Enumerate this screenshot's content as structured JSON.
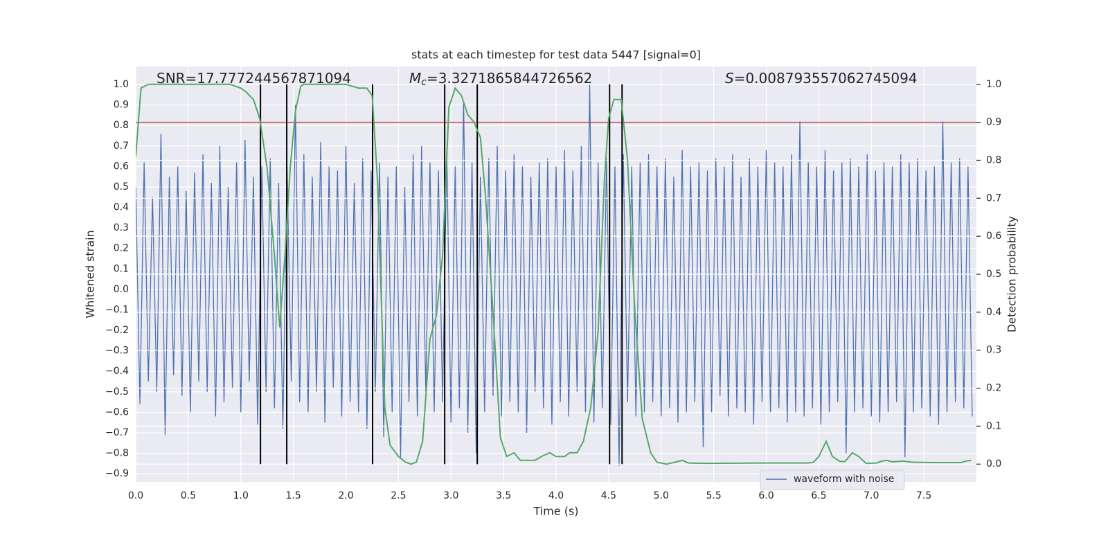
{
  "chart_data": {
    "type": "line",
    "title": "stats at each timestep for test data 5447 [signal=0]",
    "xlabel": "Time (s)",
    "ylabel": "Whitened strain",
    "y2label": "Detection probability",
    "annotations": [
      {
        "text": "SNR=17.777244567871094"
      },
      {
        "symbol": "M",
        "subscript": "c",
        "text": "=3.3271865844726562"
      },
      {
        "symbol": "S",
        "text": "=0.008793557062745094"
      }
    ],
    "xlim": [
      0,
      8.0
    ],
    "ylim": [
      -0.94,
      1.088
    ],
    "y2lim": [
      -0.047,
      1.047
    ],
    "xticks": [
      {
        "value": 0,
        "label": "0.0"
      },
      0.5,
      {
        "value": 1,
        "label": "1.0"
      },
      1.5,
      {
        "value": 2,
        "label": "2.0"
      },
      2.5,
      {
        "value": 3,
        "label": "3.0"
      },
      3.5,
      {
        "value": 4,
        "label": "4.0"
      },
      4.5,
      {
        "value": 5,
        "label": "5.0"
      },
      5.5,
      {
        "value": 6,
        "label": "6.0"
      },
      6.5,
      {
        "value": 7,
        "label": "7.0"
      },
      7.5
    ],
    "yticks": [
      {
        "value": -0.9,
        "label": "−0.9"
      },
      {
        "value": -0.8,
        "label": "−0.8"
      },
      {
        "value": -0.7,
        "label": "−0.7"
      },
      {
        "value": -0.6,
        "label": "−0.6"
      },
      {
        "value": -0.5,
        "label": "−0.5"
      },
      {
        "value": -0.4,
        "label": "−0.4"
      },
      {
        "value": -0.3,
        "label": "−0.3"
      },
      {
        "value": -0.2,
        "label": "−0.2"
      },
      {
        "value": -0.1,
        "label": "−0.1"
      },
      {
        "value": 0,
        "label": "0.0"
      },
      0.1,
      0.2,
      0.3,
      0.4,
      0.5,
      0.6,
      0.7,
      0.8,
      0.9,
      {
        "value": 1,
        "label": "1.0"
      }
    ],
    "y2ticks": [
      {
        "value": 0,
        "label": "0.0"
      },
      0.1,
      0.2,
      0.3,
      0.4,
      0.5,
      0.6,
      0.7,
      0.8,
      0.9,
      {
        "value": 1,
        "label": "1.0"
      }
    ],
    "grid": true,
    "legend": "lower right",
    "threshold": {
      "value": 0.9,
      "axis": "y2",
      "color": "#c44e52"
    },
    "vlines": {
      "x": [
        1.187,
        1.437,
        2.254,
        2.94,
        3.25,
        4.509,
        4.628
      ],
      "ymin": 0,
      "ymax": 1,
      "axis": "y2",
      "color": "#000000"
    },
    "series": [
      {
        "name": "waveform with noise",
        "color": "#4c72b0",
        "x": [
          0,
          0.04,
          0.08,
          0.12,
          0.16,
          0.2,
          0.24,
          0.28,
          0.32,
          0.36,
          0.4,
          0.44,
          0.48,
          0.52,
          0.56,
          0.6,
          0.64,
          0.68,
          0.72,
          0.76,
          0.8,
          0.84,
          0.88,
          0.92,
          0.96,
          1,
          1.04,
          1.08,
          1.12,
          1.16,
          1.2,
          1.24,
          1.28,
          1.32,
          1.36,
          1.4,
          1.44,
          1.48,
          1.52,
          1.56,
          1.6,
          1.64,
          1.68,
          1.72,
          1.76,
          1.8,
          1.84,
          1.88,
          1.92,
          1.96,
          2,
          2.04,
          2.08,
          2.12,
          2.16,
          2.2,
          2.24,
          2.28,
          2.32,
          2.36,
          2.4,
          2.44,
          2.48,
          2.52,
          2.56,
          2.6,
          2.64,
          2.68,
          2.72,
          2.76,
          2.8,
          2.84,
          2.88,
          2.92,
          2.96,
          3,
          3.04,
          3.08,
          3.12,
          3.16,
          3.2,
          3.24,
          3.28,
          3.32,
          3.36,
          3.4,
          3.44,
          3.48,
          3.52,
          3.56,
          3.6,
          3.64,
          3.68,
          3.72,
          3.76,
          3.8,
          3.84,
          3.88,
          3.92,
          3.96,
          4,
          4.04,
          4.08,
          4.12,
          4.16,
          4.2,
          4.24,
          4.28,
          4.32,
          4.36,
          4.4,
          4.44,
          4.48,
          4.52,
          4.56,
          4.6,
          4.64,
          4.68,
          4.72,
          4.76,
          4.8,
          4.84,
          4.88,
          4.92,
          4.96,
          5,
          5.04,
          5.08,
          5.12,
          5.16,
          5.2,
          5.24,
          5.28,
          5.32,
          5.36,
          5.4,
          5.44,
          5.48,
          5.52,
          5.56,
          5.6,
          5.64,
          5.68,
          5.72,
          5.76,
          5.8,
          5.84,
          5.88,
          5.92,
          5.96,
          6,
          6.04,
          6.08,
          6.12,
          6.16,
          6.2,
          6.24,
          6.28,
          6.32,
          6.36,
          6.4,
          6.44,
          6.48,
          6.52,
          6.56,
          6.6,
          6.64,
          6.68,
          6.72,
          6.76,
          6.8,
          6.84,
          6.88,
          6.92,
          6.96,
          7,
          7.04,
          7.08,
          7.12,
          7.16,
          7.2,
          7.24,
          7.28,
          7.32,
          7.36,
          7.4,
          7.44,
          7.48,
          7.52,
          7.56,
          7.6,
          7.64,
          7.68,
          7.72,
          7.76,
          7.8,
          7.84,
          7.88,
          7.92,
          7.96
        ],
        "values": [
          0.5,
          -0.56,
          0.62,
          -0.45,
          0.45,
          -0.5,
          0.76,
          -0.71,
          0.55,
          -0.42,
          0.6,
          -0.52,
          0.48,
          -0.6,
          0.57,
          -0.45,
          0.66,
          -0.5,
          0.52,
          -0.62,
          0.7,
          -0.55,
          0.5,
          -0.48,
          0.62,
          -0.6,
          0.73,
          -0.45,
          0.55,
          -0.66,
          0.6,
          -0.5,
          0.64,
          -0.58,
          0.52,
          -0.68,
          0.6,
          -0.45,
          0.9,
          -0.55,
          0.66,
          -0.6,
          0.55,
          -0.5,
          0.72,
          -0.65,
          0.6,
          -0.48,
          0.58,
          -0.62,
          0.7,
          -0.55,
          0.52,
          -0.6,
          0.64,
          -0.68,
          0.58,
          -0.5,
          0.62,
          -0.72,
          0.55,
          -0.6,
          0.6,
          -0.82,
          0.5,
          -0.55,
          0.66,
          -0.62,
          0.7,
          -0.5,
          0.62,
          -0.6,
          0.58,
          -0.55,
          0.68,
          -0.65,
          0.6,
          -0.58,
          0.92,
          -0.7,
          0.62,
          -0.8,
          0.55,
          -0.6,
          0.64,
          -0.52,
          0.7,
          -0.62,
          0.58,
          -0.55,
          0.66,
          -0.6,
          0.6,
          -0.7,
          0.55,
          -0.5,
          0.62,
          -0.58,
          0.64,
          -0.66,
          0.6,
          -0.55,
          0.68,
          -0.62,
          0.58,
          -0.5,
          0.7,
          -0.6,
          1.0,
          -0.65,
          0.62,
          -0.58,
          0.64,
          -0.66,
          0.6,
          -0.86,
          0.66,
          -0.55,
          0.6,
          -0.62,
          0.62,
          -0.6,
          0.66,
          -0.55,
          0.6,
          -0.62,
          0.64,
          -0.58,
          0.55,
          -0.65,
          0.68,
          -0.6,
          0.6,
          -0.55,
          0.62,
          -0.77,
          0.58,
          -0.6,
          0.64,
          -0.52,
          0.6,
          -0.62,
          0.66,
          -0.58,
          0.55,
          -0.6,
          0.64,
          -0.66,
          0.6,
          -0.55,
          0.68,
          -0.6,
          0.62,
          -0.58,
          0.6,
          -0.65,
          0.66,
          -0.6,
          0.82,
          -0.62,
          0.62,
          -0.58,
          0.6,
          -0.66,
          0.68,
          -0.6,
          0.58,
          -0.55,
          0.62,
          -0.8,
          0.64,
          -0.6,
          0.6,
          -0.58,
          0.66,
          -0.62,
          0.58,
          -0.65,
          0.62,
          -0.6,
          0.6,
          -0.55,
          0.66,
          -0.82,
          0.62,
          -0.6,
          0.64,
          -0.58,
          0.58,
          -0.62,
          0.6,
          -0.66,
          0.82,
          -0.6,
          0.62,
          -0.55,
          0.64,
          -0.58,
          0.6,
          -0.62
        ]
      },
      {
        "color": "#55a868",
        "axis": "y2",
        "x": [
          0,
          0.05,
          0.12,
          0.5,
          0.9,
          0.95,
          1,
          1.05,
          1.12,
          1.18,
          1.25,
          1.32,
          1.37,
          1.42,
          1.47,
          1.52,
          1.57,
          1.6,
          2,
          2.12,
          2.2,
          2.25,
          2.3,
          2.37,
          2.42,
          2.5,
          2.57,
          2.62,
          2.67,
          2.73,
          2.8,
          2.86,
          2.92,
          2.98,
          3.04,
          3.1,
          3.16,
          3.22,
          3.28,
          3.33,
          3.4,
          3.47,
          3.53,
          3.6,
          3.66,
          3.72,
          3.8,
          3.86,
          3.94,
          4,
          4.08,
          4.13,
          4.2,
          4.26,
          4.33,
          4.4,
          4.46,
          4.5,
          4.55,
          4.62,
          4.68,
          4.75,
          4.82,
          4.9,
          4.96,
          5.05,
          5.13,
          5.2,
          5.26,
          5.4,
          6,
          6.4,
          6.45,
          6.5,
          6.57,
          6.63,
          6.7,
          6.75,
          6.82,
          6.88,
          6.95,
          7.05,
          7.1,
          7.15,
          7.2,
          7.3,
          7.4,
          7.6,
          7.85,
          7.9,
          7.95
        ],
        "values": [
          0.81,
          0.99,
          1.0,
          1.0,
          1.0,
          0.995,
          0.99,
          0.98,
          0.96,
          0.91,
          0.78,
          0.55,
          0.36,
          0.55,
          0.78,
          0.93,
          0.995,
          1.0,
          1.0,
          0.99,
          0.99,
          0.97,
          0.75,
          0.15,
          0.05,
          0.02,
          0.005,
          0.0,
          0.005,
          0.06,
          0.33,
          0.39,
          0.55,
          0.94,
          0.99,
          0.97,
          0.92,
          0.9,
          0.86,
          0.7,
          0.4,
          0.07,
          0.02,
          0.03,
          0.01,
          0.01,
          0.01,
          0.02,
          0.03,
          0.02,
          0.02,
          0.03,
          0.03,
          0.06,
          0.15,
          0.35,
          0.75,
          0.91,
          0.96,
          0.96,
          0.8,
          0.4,
          0.12,
          0.03,
          0.005,
          0.0,
          0.005,
          0.01,
          0.003,
          0.002,
          0.003,
          0.003,
          0.005,
          0.02,
          0.06,
          0.02,
          0.007,
          0.007,
          0.03,
          0.02,
          0.002,
          0.003,
          0.008,
          0.01,
          0.006,
          0.008,
          0.005,
          0.004,
          0.004,
          0.008,
          0.01
        ]
      }
    ]
  }
}
